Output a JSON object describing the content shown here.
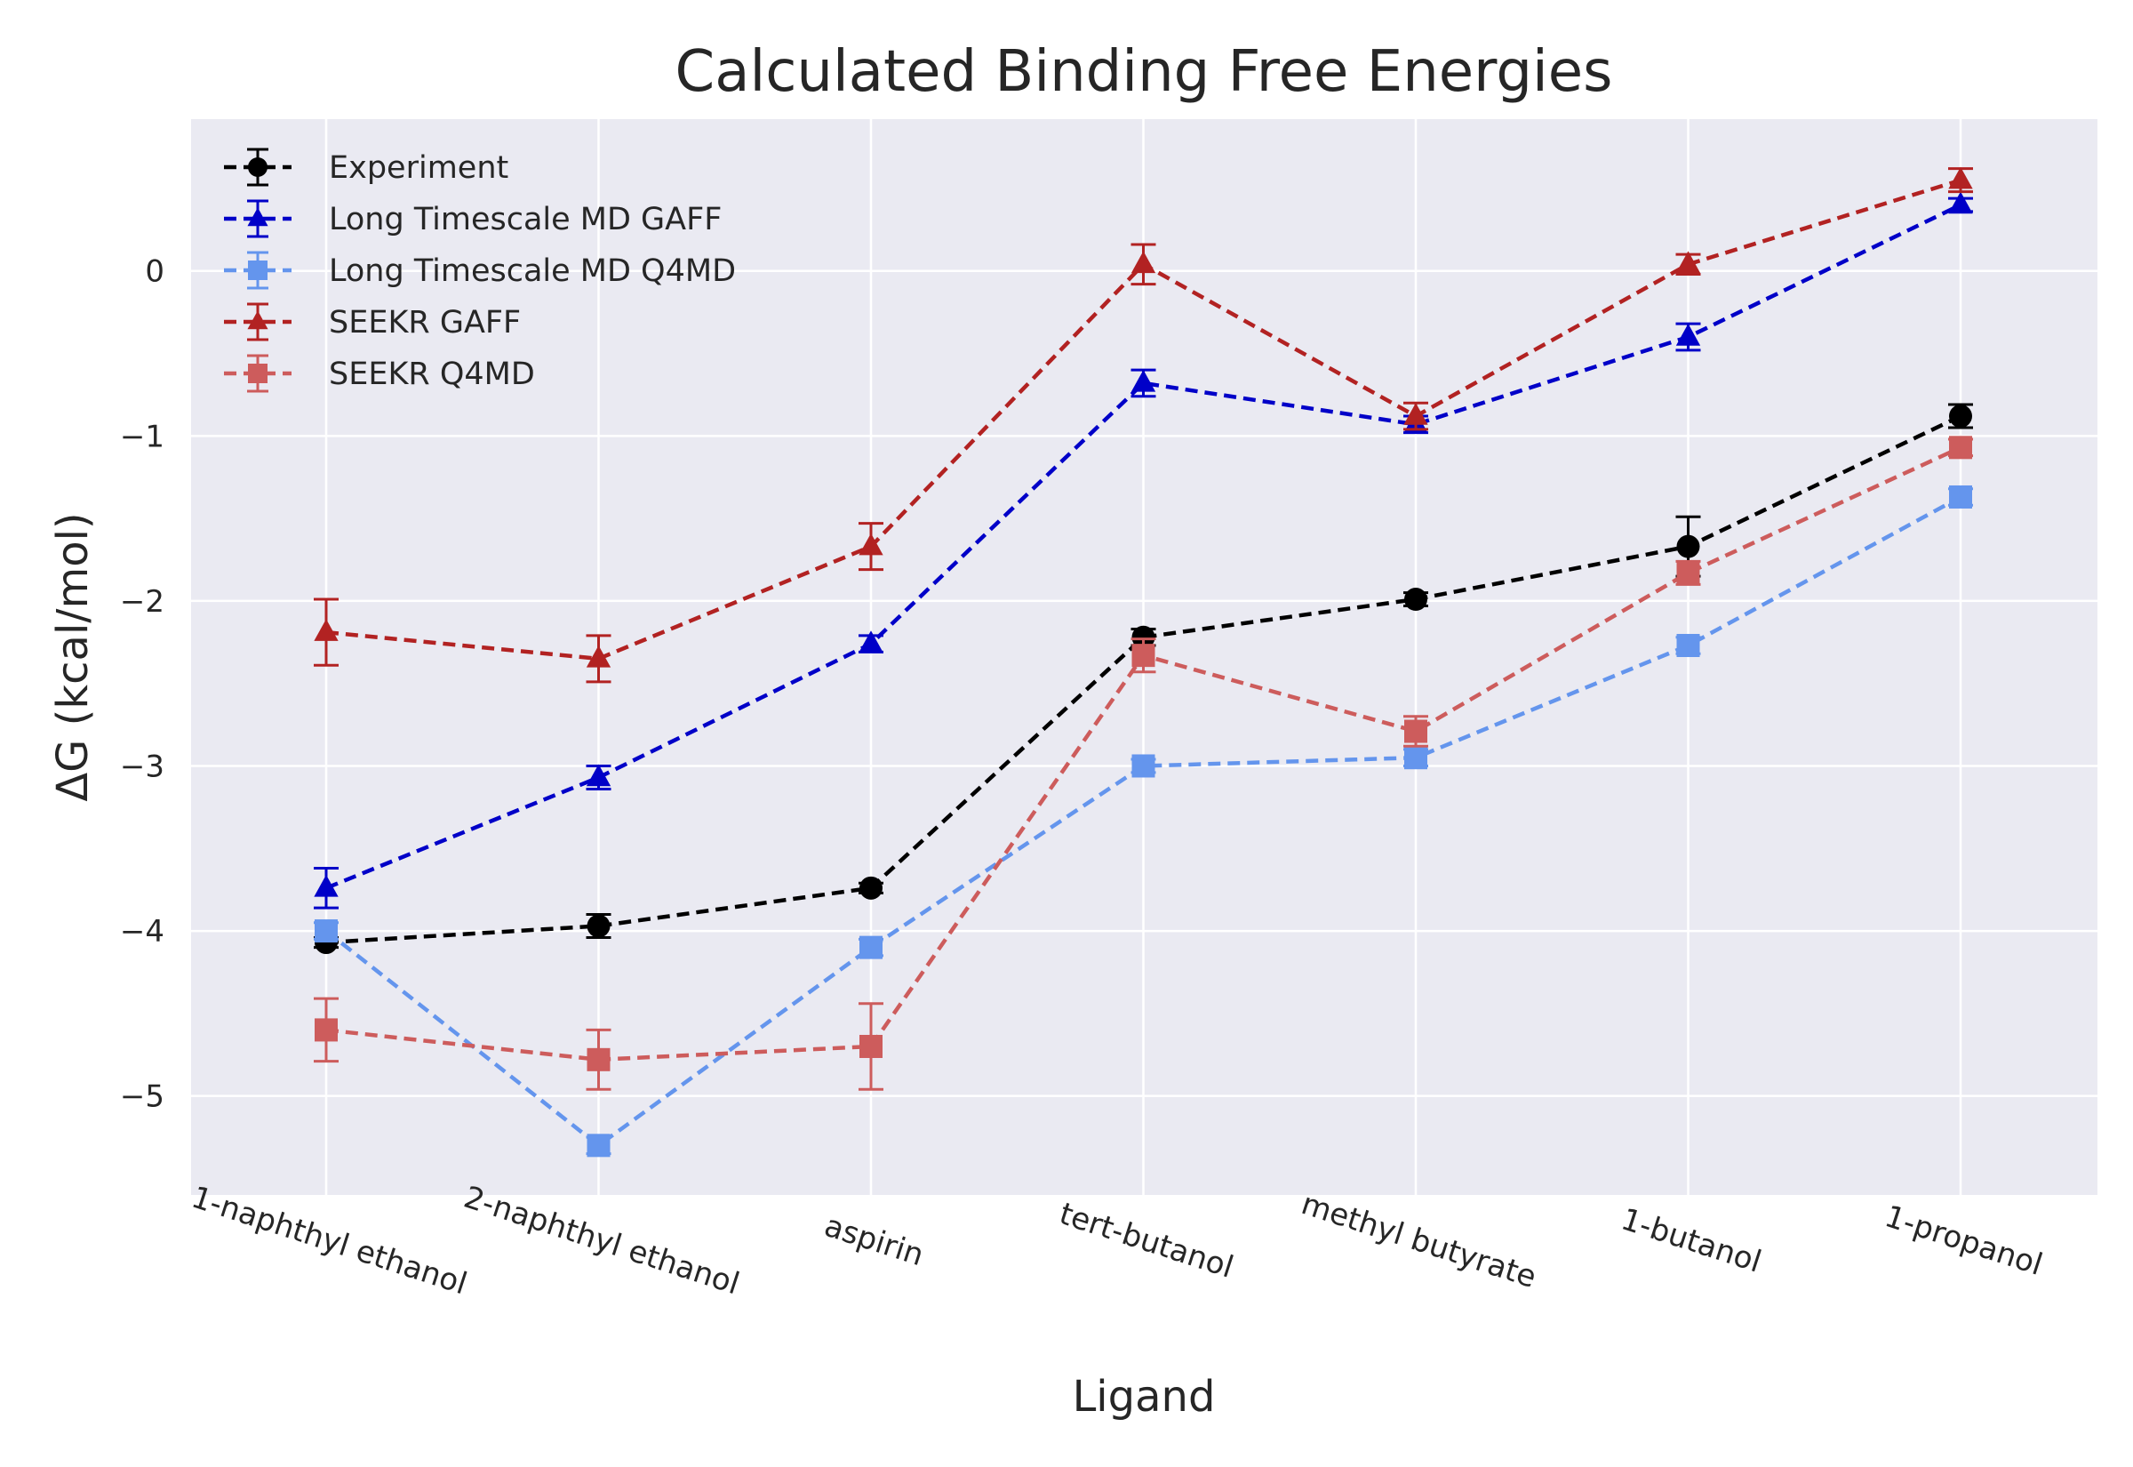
{
  "chart_data": {
    "type": "line",
    "title": "Calculated Binding Free Energies",
    "xlabel": "Ligand",
    "ylabel": "ΔG (kcal/mol)",
    "categories": [
      "1-naphthyl ethanol",
      "2-naphthyl ethanol",
      "aspirin",
      "tert-butanol",
      "methyl butyrate",
      "1-butanol",
      "1-propanol"
    ],
    "ylim": [
      -5.6,
      0.92
    ],
    "yticks": [
      -5,
      -4,
      -3,
      -2,
      -1,
      0
    ],
    "ytick_labels": [
      "−5",
      "−4",
      "−3",
      "−2",
      "−1",
      "0"
    ],
    "grid": true,
    "legend_position": "top-left",
    "series": [
      {
        "name": "Experiment",
        "color": "#000000",
        "marker": "circle",
        "values": [
          -4.07,
          -3.97,
          -3.74,
          -2.22,
          -1.99,
          -1.67,
          -0.88
        ],
        "errors": [
          0.03,
          0.07,
          0.03,
          0.05,
          0.04,
          0.18,
          0.07
        ]
      },
      {
        "name": "Long Timescale MD GAFF",
        "color": "#0000c8",
        "marker": "triangle",
        "values": [
          -3.74,
          -3.07,
          -2.26,
          -0.68,
          -0.93,
          -0.4,
          0.4
        ],
        "errors": [
          0.12,
          0.07,
          0.05,
          0.08,
          0.05,
          0.08,
          0.04
        ]
      },
      {
        "name": "Long Timescale MD Q4MD",
        "color": "#6495ed",
        "marker": "square",
        "values": [
          -4.0,
          -5.3,
          -4.1,
          -3.0,
          -2.95,
          -2.27,
          -1.37
        ],
        "errors": [
          0.05,
          0.05,
          0.05,
          0.04,
          0.05,
          0.05,
          0.05
        ]
      },
      {
        "name": "SEEKR GAFF",
        "color": "#b22222",
        "marker": "triangle",
        "values": [
          -2.19,
          -2.35,
          -1.67,
          0.04,
          -0.88,
          0.04,
          0.55
        ],
        "errors": [
          0.2,
          0.14,
          0.14,
          0.12,
          0.08,
          0.06,
          0.07
        ]
      },
      {
        "name": "SEEKR Q4MD",
        "color": "#cd5c5c",
        "marker": "square",
        "values": [
          -4.6,
          -4.78,
          -4.7,
          -2.33,
          -2.79,
          -1.83,
          -1.07
        ],
        "errors": [
          0.19,
          0.18,
          0.26,
          0.1,
          0.09,
          0.07,
          0.05
        ]
      }
    ]
  }
}
